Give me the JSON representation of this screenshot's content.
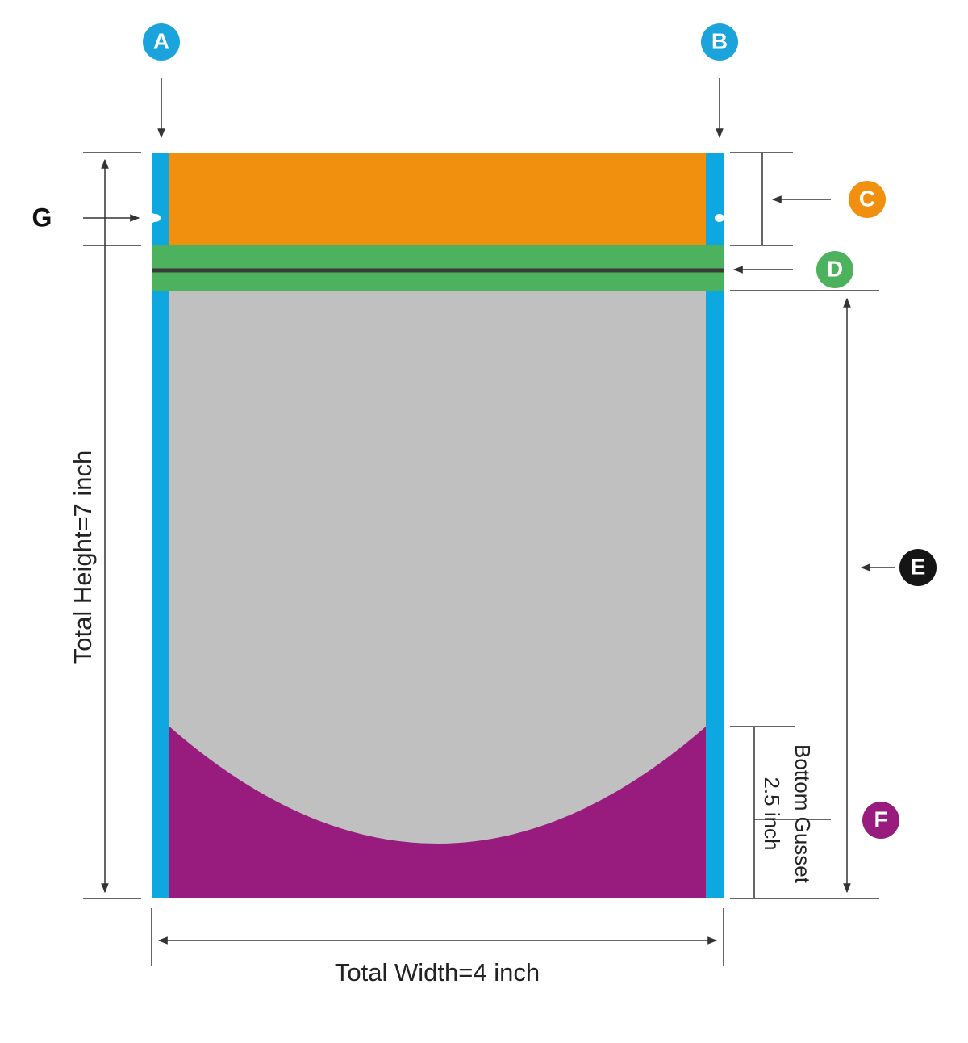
{
  "markers": {
    "a": "A",
    "b": "B",
    "c": "C",
    "d": "D",
    "e": "E",
    "f": "F",
    "g": "G"
  },
  "dimensions": {
    "height": "Total Height=7 inch",
    "width": "Total Width=4 inch",
    "gusset_title": "Bottom Gusset",
    "gusset_size": "2.5 inch"
  }
}
